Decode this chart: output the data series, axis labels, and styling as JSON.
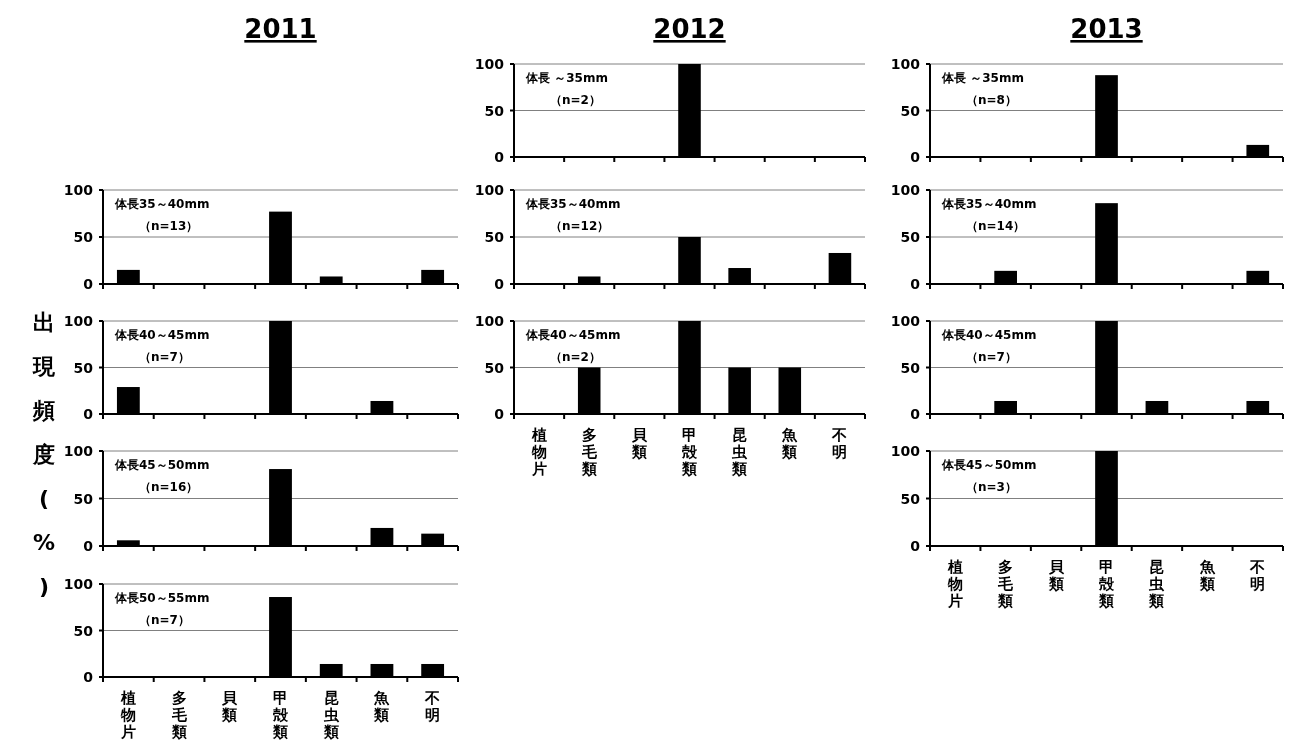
{
  "chart_data": [
    {
      "type": "bar",
      "title": "2011",
      "ylabel": "出現頻度 (%)",
      "categories": [
        null,
        null,
        null,
        null,
        null,
        null,
        null
      ],
      "values": [
        15,
        0,
        0,
        77,
        8,
        0,
        15
      ],
      "color": "#000000",
      "ylim": [
        0,
        100
      ],
      "yticks": [
        0,
        50,
        100
      ],
      "grid": "y",
      "tick_labels": "y",
      "annotations": [
        "体長35～40mm",
        "（n=13）"
      ]
    },
    {
      "type": "bar",
      "categories": [
        null,
        null,
        null,
        null,
        null,
        null,
        null
      ],
      "values": [
        29,
        0,
        0,
        100,
        0,
        14,
        0
      ],
      "color": "#000000",
      "ylim": [
        0,
        100
      ],
      "yticks": [
        0,
        50,
        100
      ],
      "grid": "y",
      "tick_labels": "y",
      "annotations": [
        "体長40～45mm",
        "（n=7）"
      ]
    },
    {
      "type": "bar",
      "categories": [
        null,
        null,
        null,
        null,
        null,
        null,
        null
      ],
      "values": [
        6,
        0,
        0,
        81,
        0,
        19,
        13
      ],
      "color": "#000000",
      "ylim": [
        0,
        100
      ],
      "yticks": [
        0,
        50,
        100
      ],
      "grid": "y",
      "tick_labels": "y",
      "annotations": [
        "体長45～50mm",
        "（n=16）"
      ]
    },
    {
      "type": "bar",
      "categories": [
        "植物片",
        "多毛類",
        "貝類",
        "甲殻類",
        "昆虫類",
        "魚類",
        "不明"
      ],
      "values": [
        0,
        0,
        0,
        86,
        14,
        14,
        14
      ],
      "color": "#000000",
      "ylim": [
        0,
        100
      ],
      "yticks": [
        0,
        50,
        100
      ],
      "grid": "y",
      "annotations": [
        "体長50～55mm",
        "（n=7）"
      ]
    },
    {
      "type": "bar",
      "title": "2012",
      "categories": [
        null,
        null,
        null,
        null,
        null,
        null,
        null
      ],
      "values": [
        0,
        0,
        0,
        100,
        0,
        0,
        0
      ],
      "color": "#000000",
      "ylim": [
        0,
        100
      ],
      "yticks": [
        0,
        50,
        100
      ],
      "grid": "y",
      "tick_labels": "y",
      "annotations": [
        "体長 ～35mm",
        "（n=2）"
      ]
    },
    {
      "type": "bar",
      "categories": [
        null,
        null,
        null,
        null,
        null,
        null,
        null
      ],
      "values": [
        0,
        8,
        0,
        50,
        17,
        0,
        33
      ],
      "color": "#000000",
      "ylim": [
        0,
        100
      ],
      "yticks": [
        0,
        50,
        100
      ],
      "grid": "y",
      "tick_labels": "y",
      "annotations": [
        "体長35～40mm",
        "（n=12）"
      ]
    },
    {
      "type": "bar",
      "categories": [
        "植物片",
        "多毛類",
        "貝類",
        "甲殻類",
        "昆虫類",
        "魚類",
        "不明"
      ],
      "values": [
        0,
        50,
        0,
        100,
        50,
        50,
        0
      ],
      "color": "#000000",
      "ylim": [
        0,
        100
      ],
      "yticks": [
        0,
        50,
        100
      ],
      "grid": "y",
      "annotations": [
        "体長40～45mm",
        "（n=2）"
      ]
    },
    {
      "type": "bar",
      "title": "2013",
      "categories": [
        null,
        null,
        null,
        null,
        null,
        null,
        null
      ],
      "values": [
        0,
        0,
        0,
        88,
        0,
        0,
        13
      ],
      "color": "#000000",
      "ylim": [
        0,
        100
      ],
      "yticks": [
        0,
        50,
        100
      ],
      "grid": "y",
      "tick_labels": "y",
      "annotations": [
        "体長 ～35mm",
        "（n=8）"
      ]
    },
    {
      "type": "bar",
      "categories": [
        null,
        null,
        null,
        null,
        null,
        null,
        null
      ],
      "values": [
        0,
        14,
        0,
        86,
        0,
        0,
        14
      ],
      "color": "#000000",
      "ylim": [
        0,
        100
      ],
      "yticks": [
        0,
        50,
        100
      ],
      "grid": "y",
      "tick_labels": "y",
      "annotations": [
        "体長35～40mm",
        "（n=14）"
      ]
    },
    {
      "type": "bar",
      "categories": [
        null,
        null,
        null,
        null,
        null,
        null,
        null
      ],
      "values": [
        0,
        14,
        0,
        100,
        14,
        0,
        14
      ],
      "color": "#000000",
      "ylim": [
        0,
        100
      ],
      "yticks": [
        0,
        50,
        100
      ],
      "grid": "y",
      "tick_labels": "y",
      "annotations": [
        "体長40～45mm",
        "（n=7）"
      ]
    },
    {
      "type": "bar",
      "categories": [
        "植物片",
        "多毛類",
        "貝類",
        "甲殻類",
        "昆虫類",
        "魚類",
        "不明"
      ],
      "values": [
        0,
        0,
        0,
        100,
        0,
        0,
        0
      ],
      "color": "#000000",
      "ylim": [
        0,
        100
      ],
      "yticks": [
        0,
        50,
        100
      ],
      "grid": "y",
      "annotations": [
        "体長45～50mm",
        "（n=3）"
      ]
    }
  ]
}
